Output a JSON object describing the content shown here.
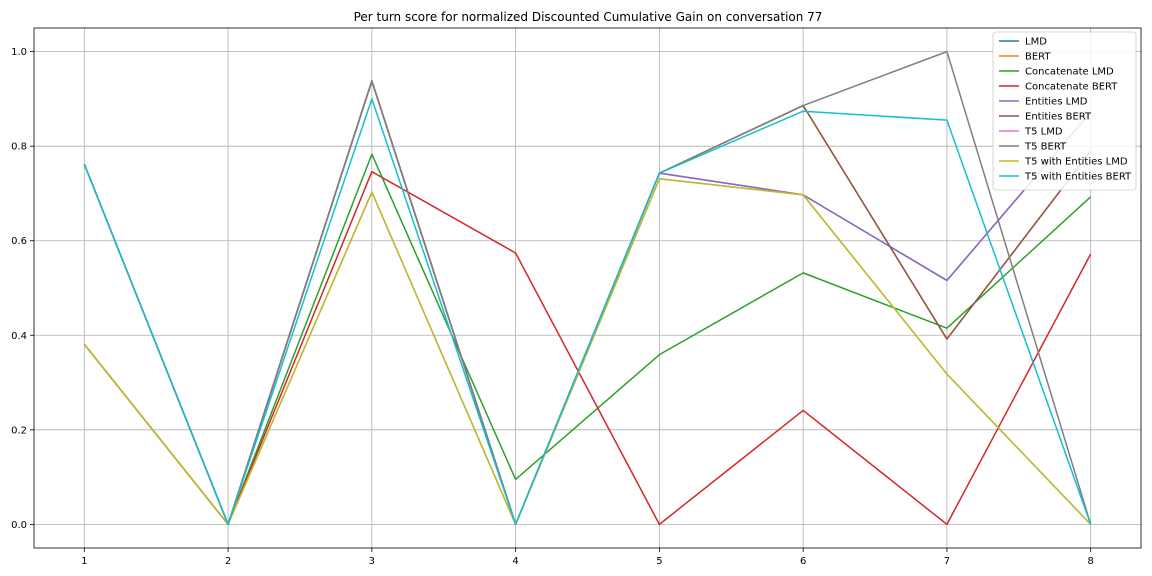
{
  "chart_data": {
    "type": "line",
    "title": "Per turn score for normalized Discounted Cumulative Gain on conversation 77",
    "xlabel": "",
    "ylabel": "",
    "x": [
      1,
      2,
      3,
      4,
      5,
      6,
      7,
      8
    ],
    "xlim": [
      0.65,
      8.35
    ],
    "ylim": [
      -0.05,
      1.05
    ],
    "x_ticks": [
      "1",
      "2",
      "3",
      "4",
      "5",
      "6",
      "7",
      "8"
    ],
    "y_ticks": [
      "0.0",
      "0.2",
      "0.4",
      "0.6",
      "0.8",
      "1.0"
    ],
    "grid": true,
    "legend_position": "top-right",
    "series": [
      {
        "name": "LMD",
        "color": "#1f77b4",
        "values": [
          0.762,
          0.0,
          0.938,
          0.0,
          0.743,
          0.697,
          0.516,
          0.872
        ]
      },
      {
        "name": "BERT",
        "color": "#ff7f0e",
        "values": [
          0.762,
          0.0,
          0.938,
          0.0,
          0.743,
          0.886,
          0.392,
          0.79
        ]
      },
      {
        "name": "Concatenate LMD",
        "color": "#2ca02c",
        "values": [
          0.381,
          0.0,
          0.783,
          0.095,
          0.359,
          0.532,
          0.415,
          0.693
        ]
      },
      {
        "name": "Concatenate BERT",
        "color": "#d62728",
        "values": [
          0.381,
          0.0,
          0.746,
          0.574,
          0.0,
          0.241,
          0.0,
          0.572
        ]
      },
      {
        "name": "Entities LMD",
        "color": "#9467bd",
        "values": [
          0.762,
          0.0,
          0.938,
          0.0,
          0.743,
          0.697,
          0.516,
          0.872
        ]
      },
      {
        "name": "Entities BERT",
        "color": "#8c564b",
        "values": [
          0.762,
          0.0,
          0.938,
          0.0,
          0.743,
          0.886,
          0.392,
          0.79
        ]
      },
      {
        "name": "T5 LMD",
        "color": "#e377c2",
        "values": [
          0.381,
          0.0,
          0.703,
          0.0,
          0.731,
          0.697,
          0.318,
          0.0
        ]
      },
      {
        "name": "T5 BERT",
        "color": "#7f7f7f",
        "values": [
          0.762,
          0.0,
          0.938,
          0.0,
          0.743,
          0.886,
          1.0,
          0.0
        ]
      },
      {
        "name": "T5 with Entities LMD",
        "color": "#bcbd22",
        "values": [
          0.381,
          0.0,
          0.703,
          0.0,
          0.731,
          0.697,
          0.318,
          0.0
        ]
      },
      {
        "name": "T5 with Entities BERT",
        "color": "#17becf",
        "values": [
          0.762,
          0.0,
          0.9,
          0.0,
          0.743,
          0.874,
          0.855,
          0.0
        ]
      }
    ]
  }
}
